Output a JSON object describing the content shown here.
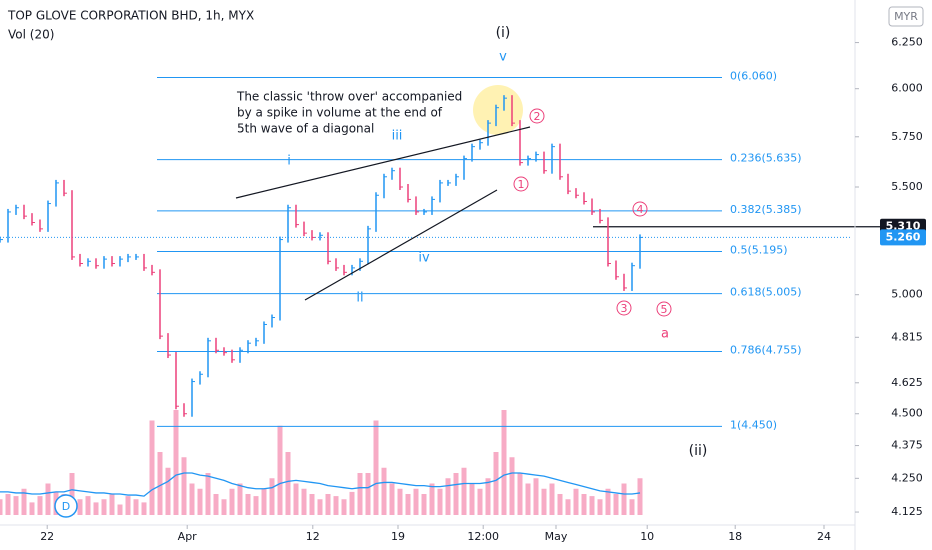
{
  "chart_data": {
    "type": "ohlc",
    "title": "TOP GLOVE CORPORATION BHD, 1h, MYX",
    "currency": "MYR",
    "log_scale": true,
    "up_color": "#2196f3",
    "down_color": "#ec407a",
    "xlim": [
      0,
      106.5
    ],
    "ylim": [
      4.06,
      6.49
    ],
    "xticks": [
      {
        "value": 5.9,
        "label": "22"
      },
      {
        "value": 23.4,
        "label": "Apr"
      },
      {
        "value": 39.1,
        "label": "12"
      },
      {
        "value": 49.75,
        "label": "19"
      },
      {
        "value": 60.4,
        "label": "12:00"
      },
      {
        "value": 69.5,
        "label": "May"
      },
      {
        "value": 80.9,
        "label": "10"
      },
      {
        "value": 91.9,
        "label": "18"
      },
      {
        "value": 103,
        "label": "24"
      }
    ],
    "yticks": [
      {
        "value": 6.25,
        "label": "6.250"
      },
      {
        "value": 6,
        "label": "6.000"
      },
      {
        "value": 5.75,
        "label": "5.750"
      },
      {
        "value": 5.5,
        "label": "5.500"
      },
      {
        "value": 5,
        "label": "5.000"
      },
      {
        "value": 4.815,
        "label": "4.815"
      },
      {
        "value": 4.625,
        "label": "4.625"
      },
      {
        "value": 4.5,
        "label": "4.500"
      },
      {
        "value": 4.375,
        "label": "4.375"
      },
      {
        "value": 4.25,
        "label": "4.250"
      },
      {
        "value": 4.125,
        "label": "4.125"
      }
    ],
    "x": [
      0,
      1,
      2,
      3,
      4,
      5,
      6,
      7,
      8,
      9,
      10,
      11,
      12,
      13,
      14,
      15,
      16,
      17,
      18,
      19,
      20,
      21,
      22,
      23,
      24,
      25,
      26,
      27,
      28,
      29,
      30,
      31,
      32,
      33,
      34,
      35,
      36,
      37,
      38,
      39,
      40,
      41,
      42,
      43,
      44,
      45,
      46,
      47,
      48,
      49,
      50,
      51,
      52,
      53,
      54,
      55,
      56,
      57,
      58,
      59,
      60,
      61,
      62,
      63,
      64,
      65,
      66,
      67,
      68,
      69,
      70,
      71,
      72,
      73,
      74,
      75,
      76,
      77,
      78,
      79,
      80
    ],
    "values": [
      5.25,
      5.38,
      5.4,
      5.36,
      5.33,
      5.3,
      5.42,
      5.52,
      5.47,
      5.17,
      5.14,
      5.15,
      5.13,
      5.16,
      5.14,
      5.16,
      5.17,
      5.17,
      5.12,
      5.1,
      4.82,
      4.74,
      4.53,
      4.5,
      4.63,
      4.66,
      4.8,
      4.76,
      4.75,
      4.72,
      4.76,
      4.79,
      4.8,
      4.87,
      4.9,
      5.25,
      5.4,
      5.32,
      5.28,
      5.26,
      5.27,
      5.15,
      5.12,
      5.1,
      5.12,
      5.15,
      5.3,
      5.46,
      5.55,
      5.58,
      5.5,
      5.44,
      5.38,
      5.38,
      5.44,
      5.52,
      5.52,
      5.55,
      5.64,
      5.7,
      5.72,
      5.82,
      5.9,
      5.95,
      5.82,
      5.62,
      5.64,
      5.66,
      5.58,
      5.7,
      5.55,
      5.48,
      5.46,
      5.43,
      5.38,
      5.34,
      5.14,
      5.08,
      5.03,
      5.13,
      5.26
    ],
    "volume": {
      "name": "Vol (20)",
      "color": "#f48fb1",
      "ma_color": "#2196f3",
      "vlim": [
        0,
        100
      ],
      "values": [
        15,
        20,
        18,
        25,
        12,
        18,
        30,
        22,
        20,
        40,
        15,
        18,
        12,
        15,
        20,
        10,
        18,
        15,
        12,
        90,
        60,
        45,
        100,
        55,
        30,
        25,
        40,
        20,
        15,
        25,
        30,
        20,
        18,
        25,
        35,
        85,
        60,
        30,
        25,
        20,
        15,
        20,
        18,
        15,
        22,
        40,
        40,
        90,
        45,
        30,
        25,
        20,
        25,
        20,
        30,
        25,
        35,
        40,
        45,
        30,
        25,
        35,
        60,
        100,
        55,
        40,
        30,
        35,
        25,
        30,
        20,
        15,
        25,
        20,
        18,
        15,
        25,
        20,
        30,
        15,
        35
      ],
      "ma": [
        22,
        22,
        21,
        21,
        20,
        20,
        21,
        22,
        22,
        24,
        23,
        22,
        21,
        21,
        20,
        20,
        19,
        19,
        18,
        24,
        28,
        32,
        38,
        40,
        40,
        38,
        37,
        35,
        33,
        30,
        28,
        26,
        25,
        25,
        26,
        30,
        32,
        33,
        32,
        31,
        30,
        28,
        27,
        26,
        25,
        26,
        26,
        30,
        31,
        31,
        30,
        29,
        28,
        28,
        27,
        27,
        28,
        29,
        30,
        30,
        30,
        31,
        33,
        38,
        40,
        40,
        39,
        38,
        37,
        35,
        33,
        31,
        29,
        27,
        25,
        23,
        22,
        21,
        20,
        20,
        21
      ]
    },
    "fib_color": "#2196f3",
    "fib_levels": [
      {
        "value": 6.06,
        "label": "0(6.060)"
      },
      {
        "value": 5.635,
        "label": "0.236(5.635)"
      },
      {
        "value": 5.385,
        "label": "0.382(5.385)"
      },
      {
        "value": 5.195,
        "label": "0.5(5.195)"
      },
      {
        "value": 5.005,
        "label": "0.618(5.005)"
      },
      {
        "value": 4.755,
        "label": "0.786(4.755)"
      },
      {
        "value": 4.45,
        "label": "1(4.450)"
      }
    ],
    "marked_price": {
      "value": 5.31,
      "label": "5.310"
    },
    "last_price": {
      "value": 5.26,
      "label": "5.260"
    },
    "note": [
      "The classic 'throw over' accompanied",
      "by a spike in volume at the end of",
      "5th wave of a diagonal"
    ],
    "wave_labels": [
      "(i)",
      "v",
      "i",
      "iii",
      "iv",
      "ii",
      "(ii)",
      "a",
      "1",
      "2",
      "3",
      "4",
      "5"
    ],
    "logo": "D"
  }
}
